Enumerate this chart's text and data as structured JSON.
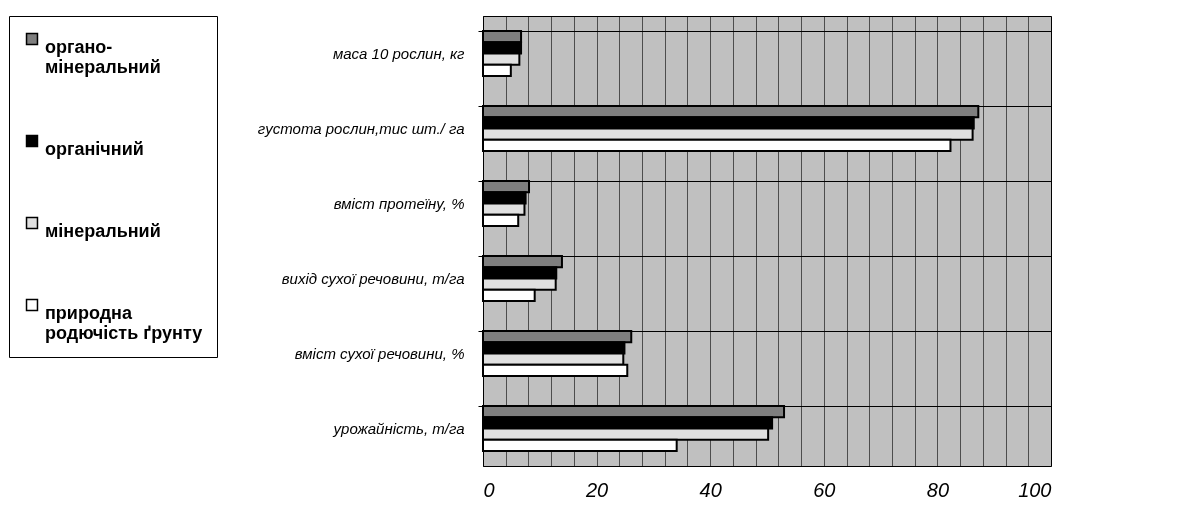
{
  "chart_data": {
    "type": "bar",
    "orientation": "horizontal",
    "categories": [
      "маса 10 рослин, кг",
      "густота рослин,тис шт./ га",
      "вміст протеїну, %",
      "вихід сухої речовини, т/га",
      "вміст сухої речовини, %",
      "урожайність, т/га"
    ],
    "series": [
      {
        "name": "органо-мінеральний",
        "color": "#7f7f7f",
        "values": [
          6.7,
          87.2,
          8.1,
          13.9,
          26.1,
          53.0
        ]
      },
      {
        "name": "органічний",
        "color": "#000000",
        "values": [
          6.7,
          86.4,
          7.5,
          12.9,
          24.9,
          50.9
        ]
      },
      {
        "name": "мінеральний",
        "color": "#e0e0e0",
        "values": [
          6.4,
          86.2,
          7.3,
          12.8,
          24.7,
          50.2
        ]
      },
      {
        "name": "природна родючість ґрунту",
        "color": "#ffffff",
        "values": [
          4.9,
          82.3,
          6.2,
          9.1,
          25.4,
          34.1
        ]
      }
    ],
    "xlim": [
      0,
      100
    ],
    "xticks": [
      0,
      {
        "value": 4,
        "label": null
      },
      {
        "value": 8,
        "label": null
      },
      {
        "value": 12,
        "label": null
      },
      {
        "value": 16,
        "label": null
      },
      20,
      {
        "value": 24,
        "label": null
      },
      {
        "value": 28,
        "label": null
      },
      {
        "value": 32,
        "label": null
      },
      {
        "value": 36,
        "label": null
      },
      40,
      {
        "value": 44,
        "label": null
      },
      {
        "value": 48,
        "label": null
      },
      {
        "value": 52,
        "label": null
      },
      {
        "value": 56,
        "label": null
      },
      60,
      {
        "value": 64,
        "label": null
      },
      {
        "value": 68,
        "label": null
      },
      {
        "value": 72,
        "label": null
      },
      {
        "value": 76,
        "label": null
      },
      80,
      {
        "value": 84,
        "label": null
      },
      {
        "value": 88,
        "label": null
      },
      {
        "value": 92,
        "label": null
      },
      {
        "value": 96,
        "label": null
      },
      100
    ],
    "grid": true,
    "legend": "left"
  }
}
